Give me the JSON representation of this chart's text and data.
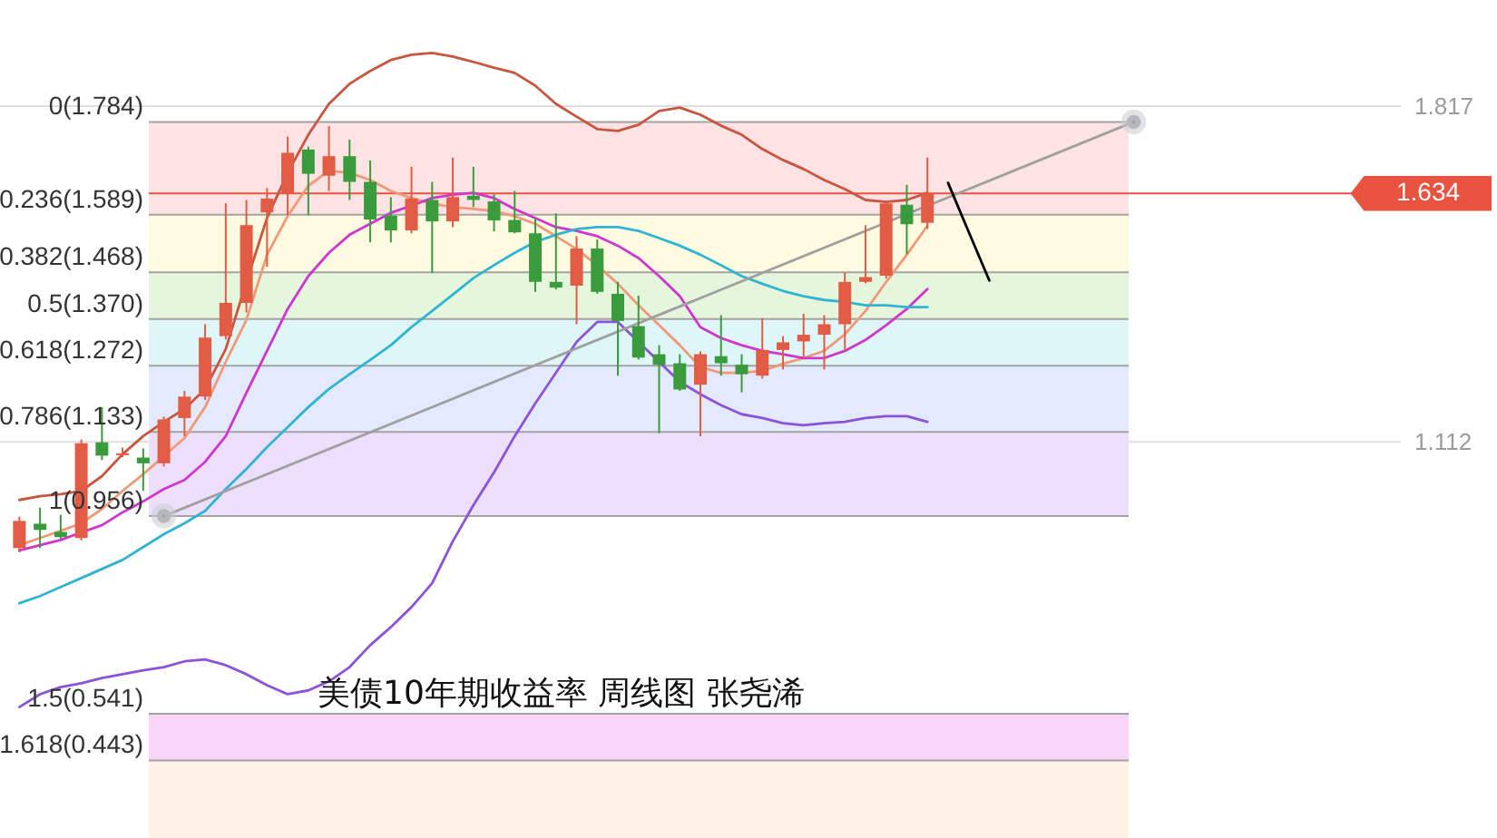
{
  "chart_data": {
    "type": "candlestick",
    "title": "美债10年期收益率  周线图  张尧浠",
    "categories": [
      null,
      null,
      null,
      null,
      null,
      null,
      null,
      null,
      null,
      null,
      null,
      null,
      null,
      null,
      null,
      null,
      null,
      null,
      null,
      null,
      null,
      null,
      null,
      null,
      null,
      null,
      null,
      null,
      null,
      null,
      null,
      null,
      null,
      null,
      null,
      null,
      null,
      null,
      null,
      null,
      null,
      null,
      null,
      null,
      null,
      null,
      null,
      null,
      null,
      null,
      null,
      null,
      null,
      null,
      null,
      null,
      null,
      null,
      null,
      null,
      null,
      null,
      null,
      null,
      null,
      null,
      null
    ],
    "ohlc": [
      [
        0.889,
        0.955,
        0.88,
        0.946
      ],
      [
        0.94,
        0.974,
        0.889,
        0.927
      ],
      [
        0.923,
        0.959,
        0.908,
        0.912
      ],
      [
        0.91,
        1.117,
        0.905,
        1.109
      ],
      [
        1.111,
        1.185,
        1.074,
        1.083
      ],
      [
        1.084,
        1.1,
        1.08,
        1.088
      ],
      [
        1.079,
        1.098,
        1.009,
        1.067
      ],
      [
        1.067,
        1.165,
        1.06,
        1.159
      ],
      [
        1.162,
        1.219,
        1.124,
        1.207
      ],
      [
        1.207,
        1.359,
        1.2,
        1.331
      ],
      [
        1.334,
        1.613,
        1.327,
        1.404
      ],
      [
        1.404,
        1.62,
        1.384,
        1.567
      ],
      [
        1.594,
        1.645,
        1.48,
        1.623
      ],
      [
        1.633,
        1.753,
        1.588,
        1.719
      ],
      [
        1.726,
        1.732,
        1.588,
        1.675
      ],
      [
        1.671,
        1.775,
        1.639,
        1.712
      ],
      [
        1.712,
        1.747,
        1.62,
        1.658
      ],
      [
        1.658,
        1.703,
        1.531,
        1.579
      ],
      [
        1.587,
        1.626,
        1.531,
        1.556
      ],
      [
        1.556,
        1.69,
        1.55,
        1.623
      ],
      [
        1.62,
        1.658,
        1.467,
        1.575
      ],
      [
        1.575,
        1.709,
        1.563,
        1.626
      ],
      [
        1.629,
        1.69,
        1.605,
        1.62
      ],
      [
        1.617,
        1.632,
        1.554,
        1.577
      ],
      [
        1.578,
        1.639,
        1.55,
        1.552
      ],
      [
        1.55,
        1.582,
        1.427,
        1.448
      ],
      [
        1.448,
        1.592,
        1.432,
        1.436
      ],
      [
        1.44,
        1.544,
        1.359,
        1.518
      ],
      [
        1.518,
        1.537,
        1.423,
        1.427
      ],
      [
        1.423,
        1.448,
        1.251,
        1.366
      ],
      [
        1.355,
        1.419,
        1.285,
        1.289
      ],
      [
        1.296,
        1.315,
        1.13,
        1.274
      ],
      [
        1.277,
        1.296,
        1.219,
        1.222
      ],
      [
        1.232,
        1.302,
        1.124,
        1.296
      ],
      [
        1.292,
        1.378,
        1.251,
        1.277
      ],
      [
        1.274,
        1.296,
        1.216,
        1.254
      ],
      [
        1.251,
        1.372,
        1.245,
        1.305
      ],
      [
        1.305,
        1.334,
        1.264,
        1.321
      ],
      [
        1.323,
        1.381,
        1.289,
        1.337
      ],
      [
        1.337,
        1.378,
        1.264,
        1.359
      ],
      [
        1.359,
        1.467,
        1.302,
        1.448
      ],
      [
        1.448,
        1.567,
        1.445,
        1.458
      ],
      [
        1.461,
        1.613,
        1.455,
        1.613
      ],
      [
        1.61,
        1.652,
        1.506,
        1.569
      ],
      [
        1.572,
        1.709,
        1.559,
        1.634
      ],
      null,
      null,
      null,
      null,
      null,
      null,
      null,
      null,
      null,
      null,
      null,
      null,
      null,
      null,
      null,
      null,
      null,
      null,
      null,
      null,
      null,
      null
    ],
    "colors": [
      "#e25b45",
      "#3a9b3c",
      "#3a9b3c",
      "#e25b45",
      "#3a9b3c",
      "#e25b45",
      "#3a9b3c",
      "#e25b45",
      "#e25b45",
      "#e25b45",
      "#e25b45",
      "#e25b45",
      "#e25b45",
      "#e25b45",
      "#3a9b3c",
      "#e25b45",
      "#3a9b3c",
      "#3a9b3c",
      "#3a9b3c",
      "#e25b45",
      "#3a9b3c",
      "#e25b45",
      "#3a9b3c",
      "#3a9b3c",
      "#3a9b3c",
      "#3a9b3c",
      "#3a9b3c",
      "#e25b45",
      "#3a9b3c",
      "#3a9b3c",
      "#3a9b3c",
      "#3a9b3c",
      "#3a9b3c",
      "#e25b45",
      "#3a9b3c",
      "#3a9b3c",
      "#e25b45",
      "#e25b45",
      "#e25b45",
      "#e25b45",
      "#e25b45",
      "#e25b45",
      "#e25b45",
      "#3a9b3c",
      "#e25b45",
      null,
      null,
      null,
      null,
      null,
      null,
      null,
      null,
      null,
      null,
      null,
      null,
      null,
      null,
      null,
      null,
      null,
      null,
      null,
      null,
      null,
      null
    ],
    "series": [
      {
        "type": "line",
        "color": "#c9553f",
        "values": [
          0.99,
          0.998,
          1.002,
          1.009,
          1.04,
          1.086,
          1.124,
          1.154,
          1.181,
          1.223,
          1.307,
          1.448,
          1.582,
          1.677,
          1.757,
          1.822,
          1.864,
          1.891,
          1.914,
          1.925,
          1.929,
          1.921,
          1.91,
          1.898,
          1.887,
          1.86,
          1.822,
          1.795,
          1.769,
          1.765,
          1.778,
          1.807,
          1.814,
          1.799,
          1.776,
          1.757,
          1.727,
          1.704,
          1.685,
          1.662,
          1.643,
          1.62,
          1.616,
          1.62,
          1.635,
          null,
          null,
          null,
          null,
          null,
          null,
          null,
          null,
          null,
          null,
          null,
          null,
          null,
          null,
          null,
          null,
          null,
          null,
          null,
          null,
          null,
          null
        ]
      },
      {
        "type": "line",
        "color": "#f0997a",
        "values": [
          0.895,
          0.91,
          0.925,
          0.941,
          0.971,
          1.009,
          1.044,
          1.082,
          1.12,
          1.185,
          1.28,
          1.368,
          1.505,
          1.586,
          1.65,
          1.681,
          1.677,
          1.662,
          1.639,
          1.624,
          1.612,
          1.605,
          1.601,
          1.597,
          1.586,
          1.57,
          1.544,
          1.517,
          1.483,
          1.444,
          1.399,
          1.357,
          1.315,
          1.269,
          1.257,
          1.257,
          1.261,
          1.276,
          1.288,
          1.303,
          1.338,
          1.387,
          1.448,
          1.505,
          1.566,
          null,
          null,
          null,
          null,
          null,
          null,
          null,
          null,
          null,
          null,
          null,
          null,
          null,
          null,
          null,
          null,
          null,
          null,
          null,
          null,
          null,
          null
        ]
      },
      {
        "type": "line",
        "color": "#cf35cf",
        "values": [
          0.884,
          0.895,
          0.906,
          0.922,
          0.937,
          0.964,
          0.987,
          1.013,
          1.032,
          1.07,
          1.124,
          1.215,
          1.303,
          1.391,
          1.46,
          1.509,
          1.547,
          1.57,
          1.593,
          1.608,
          1.624,
          1.631,
          1.635,
          1.624,
          1.601,
          1.582,
          1.563,
          1.555,
          1.544,
          1.524,
          1.498,
          1.46,
          1.418,
          1.353,
          1.33,
          1.315,
          1.303,
          1.296,
          1.288,
          1.288,
          1.303,
          1.326,
          1.357,
          1.391,
          1.433,
          null,
          null,
          null,
          null,
          null,
          null,
          null,
          null,
          null,
          null,
          null,
          null,
          null,
          null,
          null,
          null,
          null,
          null,
          null,
          null,
          null,
          null
        ]
      },
      {
        "type": "line",
        "color": "#30b4d4",
        "values": [
          0.773,
          0.788,
          0.807,
          0.826,
          0.845,
          0.864,
          0.891,
          0.918,
          0.941,
          0.967,
          1.013,
          1.055,
          1.101,
          1.143,
          1.185,
          1.223,
          1.254,
          1.284,
          1.315,
          1.353,
          1.387,
          1.421,
          1.456,
          1.483,
          1.509,
          1.532,
          1.547,
          1.559,
          1.563,
          1.563,
          1.555,
          1.54,
          1.524,
          1.505,
          1.483,
          1.46,
          1.444,
          1.429,
          1.418,
          1.41,
          1.406,
          1.399,
          1.399,
          1.395,
          1.395,
          null,
          null,
          null,
          null,
          null,
          null,
          null,
          null,
          null,
          null,
          null,
          null,
          null,
          null,
          null,
          null,
          null,
          null,
          null,
          null,
          null,
          null
        ]
      },
      {
        "type": "line",
        "color": "#8c52d9",
        "values": [
          0.555,
          0.582,
          0.597,
          0.605,
          0.616,
          0.624,
          0.632,
          0.639,
          0.651,
          0.655,
          0.643,
          0.624,
          0.601,
          0.582,
          0.59,
          0.609,
          0.639,
          0.685,
          0.723,
          0.765,
          0.815,
          0.903,
          0.979,
          1.048,
          1.124,
          1.193,
          1.257,
          1.322,
          1.364,
          1.364,
          1.322,
          1.28,
          1.238,
          1.212,
          1.189,
          1.17,
          1.162,
          1.151,
          1.147,
          1.151,
          1.154,
          1.162,
          1.166,
          1.166,
          1.154,
          null,
          null,
          null,
          null,
          null,
          null,
          null,
          null,
          null,
          null,
          null,
          null,
          null,
          null,
          null,
          null,
          null,
          null,
          null,
          null,
          null,
          null
        ]
      },
      {
        "type": "line",
        "color": "#a0a0a0",
        "marker": "circle",
        "values": [
          null,
          null,
          null,
          null,
          null,
          null,
          null,
          0.956,
          null,
          null,
          null,
          null,
          null,
          null,
          null,
          null,
          null,
          null,
          null,
          null,
          null,
          null,
          null,
          null,
          null,
          null,
          null,
          null,
          null,
          null,
          null,
          null,
          null,
          null,
          null,
          null,
          null,
          null,
          null,
          null,
          null,
          null,
          null,
          null,
          null,
          null,
          null,
          null,
          null,
          null,
          null,
          null,
          null,
          null,
          1.784,
          null,
          null,
          null,
          null,
          null,
          null,
          null,
          null,
          null,
          null,
          null,
          null
        ]
      },
      {
        "type": "line",
        "color": "#000000",
        "values": [
          null,
          null,
          null,
          null,
          null,
          null,
          null,
          null,
          null,
          null,
          null,
          null,
          null,
          null,
          null,
          null,
          null,
          null,
          null,
          null,
          null,
          null,
          null,
          null,
          null,
          null,
          null,
          null,
          null,
          null,
          null,
          null,
          null,
          null,
          null,
          null,
          null,
          null,
          null,
          null,
          null,
          null,
          null,
          null,
          null,
          1.656,
          1.553,
          1.451,
          null,
          null,
          null,
          null,
          null,
          null,
          null,
          null,
          null,
          null,
          null,
          null,
          null,
          null,
          null,
          null,
          null,
          null,
          null
        ]
      }
    ],
    "bands": [
      {
        "axis": "y",
        "from": 1.784,
        "to": 1.589,
        "color": "#fde3e3"
      },
      {
        "axis": "y",
        "from": 1.589,
        "to": 1.468,
        "color": "#fffbe0"
      },
      {
        "axis": "y",
        "from": 1.468,
        "to": 1.37,
        "color": "#e6f6dc"
      },
      {
        "axis": "y",
        "from": 1.37,
        "to": 1.272,
        "color": "#dff6f9"
      },
      {
        "axis": "y",
        "from": 1.272,
        "to": 1.133,
        "color": "#e3eafe"
      },
      {
        "axis": "y",
        "from": 1.133,
        "to": 0.956,
        "color": "#ecdffb"
      },
      {
        "axis": "y",
        "from": 0.541,
        "to": 0.443,
        "color": "#f9d5f9"
      },
      {
        "axis": "y",
        "from": 0.443,
        "to": 0.28,
        "color": "#fdf1e6"
      }
    ],
    "ref_lines": [
      {
        "axis": "y",
        "value": 1.784,
        "label": "0(1.784)"
      },
      {
        "axis": "y",
        "value": 1.589,
        "label": "0.236(1.589)"
      },
      {
        "axis": "y",
        "value": 1.468,
        "label": "0.382(1.468)"
      },
      {
        "axis": "y",
        "value": 1.37,
        "label": "0.5(1.370)"
      },
      {
        "axis": "y",
        "value": 1.272,
        "label": "0.618(1.272)"
      },
      {
        "axis": "y",
        "value": 1.133,
        "label": "0.786(1.133)"
      },
      {
        "axis": "y",
        "value": 0.956,
        "label": "1(0.956)"
      },
      {
        "axis": "y",
        "value": 0.541,
        "label": "1.5(0.541)"
      },
      {
        "axis": "y",
        "value": 0.443,
        "label": "1.618(0.443)"
      },
      {
        "axis": "y",
        "value": 1.634,
        "label": "1.634",
        "color": "#e8533f"
      }
    ],
    "ylim": [
      0.28,
      2.04
    ],
    "yticks": [
      1.817,
      1.112
    ],
    "grid": "y",
    "tick_labels": "y"
  }
}
